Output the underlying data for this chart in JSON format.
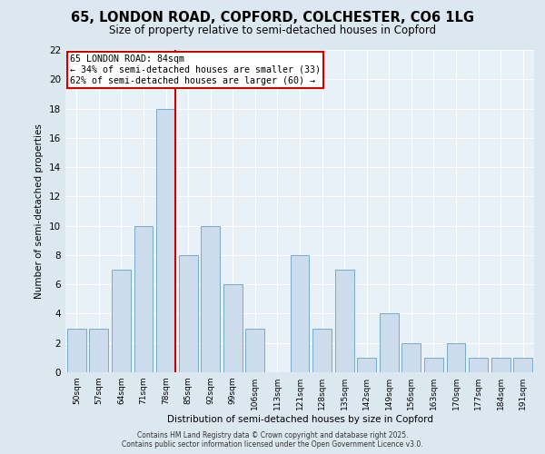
{
  "title_line1": "65, LONDON ROAD, COPFORD, COLCHESTER, CO6 1LG",
  "title_line2": "Size of property relative to semi-detached houses in Copford",
  "xlabel": "Distribution of semi-detached houses by size in Copford",
  "ylabel": "Number of semi-detached properties",
  "bin_labels": [
    "50sqm",
    "57sqm",
    "64sqm",
    "71sqm",
    "78sqm",
    "85sqm",
    "92sqm",
    "99sqm",
    "106sqm",
    "113sqm",
    "121sqm",
    "128sqm",
    "135sqm",
    "142sqm",
    "149sqm",
    "156sqm",
    "163sqm",
    "170sqm",
    "177sqm",
    "184sqm",
    "191sqm"
  ],
  "bin_values": [
    3,
    3,
    7,
    10,
    18,
    8,
    10,
    6,
    3,
    0,
    8,
    3,
    7,
    1,
    4,
    2,
    1,
    2,
    1,
    1,
    1
  ],
  "bar_color": "#ccdcec",
  "bar_edge_color": "#7aaac8",
  "subject_bin_index": 4,
  "vline_color": "#cc0000",
  "annotation_title": "65 LONDON ROAD: 84sqm",
  "annotation_line1": "← 34% of semi-detached houses are smaller (33)",
  "annotation_line2": "62% of semi-detached houses are larger (60) →",
  "annotation_box_color": "#ffffff",
  "annotation_box_edge_color": "#cc0000",
  "ylim": [
    0,
    22
  ],
  "yticks": [
    0,
    2,
    4,
    6,
    8,
    10,
    12,
    14,
    16,
    18,
    20,
    22
  ],
  "background_color": "#dce8f0",
  "plot_background_color": "#e8f0f8",
  "footer_line1": "Contains HM Land Registry data © Crown copyright and database right 2025.",
  "footer_line2": "Contains public sector information licensed under the Open Government Licence v3.0."
}
